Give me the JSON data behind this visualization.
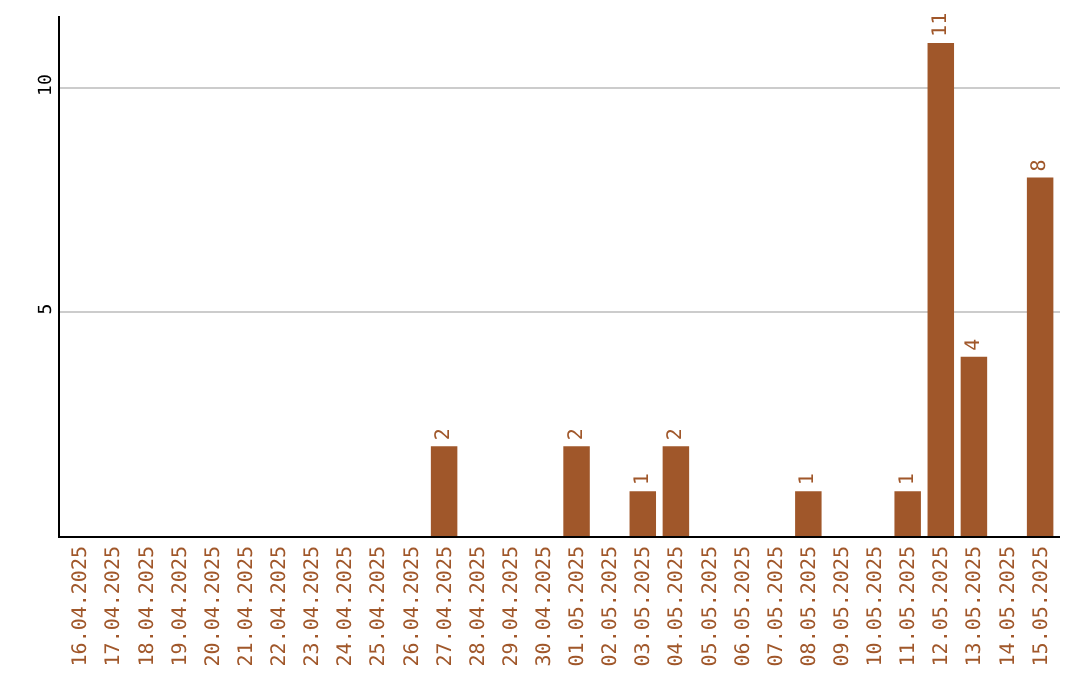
{
  "chart_data": {
    "type": "bar",
    "categories": [
      "16.04.2025",
      "17.04.2025",
      "18.04.2025",
      "19.04.2025",
      "20.04.2025",
      "21.04.2025",
      "22.04.2025",
      "23.04.2025",
      "24.04.2025",
      "25.04.2025",
      "26.04.2025",
      "27.04.2025",
      "28.04.2025",
      "29.04.2025",
      "30.04.2025",
      "01.05.2025",
      "02.05.2025",
      "03.05.2025",
      "04.05.2025",
      "05.05.2025",
      "06.05.2025",
      "07.05.2025",
      "08.05.2025",
      "09.05.2025",
      "10.05.2025",
      "11.05.2025",
      "12.05.2025",
      "13.05.2025",
      "14.05.2025",
      "15.05.2025"
    ],
    "values": [
      0,
      0,
      0,
      0,
      0,
      0,
      0,
      0,
      0,
      0,
      0,
      2,
      0,
      0,
      0,
      2,
      0,
      1,
      2,
      0,
      0,
      0,
      1,
      0,
      0,
      1,
      11,
      4,
      0,
      8
    ],
    "value_labels": [
      null,
      null,
      null,
      null,
      null,
      null,
      null,
      null,
      null,
      null,
      null,
      "2",
      null,
      null,
      null,
      "2",
      null,
      "1",
      "2",
      null,
      null,
      null,
      "1",
      null,
      null,
      "1",
      "11",
      "4",
      null,
      "8"
    ],
    "color": "#a0572a",
    "ylim": [
      0,
      11.6
    ],
    "yticks": [
      5,
      10
    ],
    "grid": "y"
  }
}
